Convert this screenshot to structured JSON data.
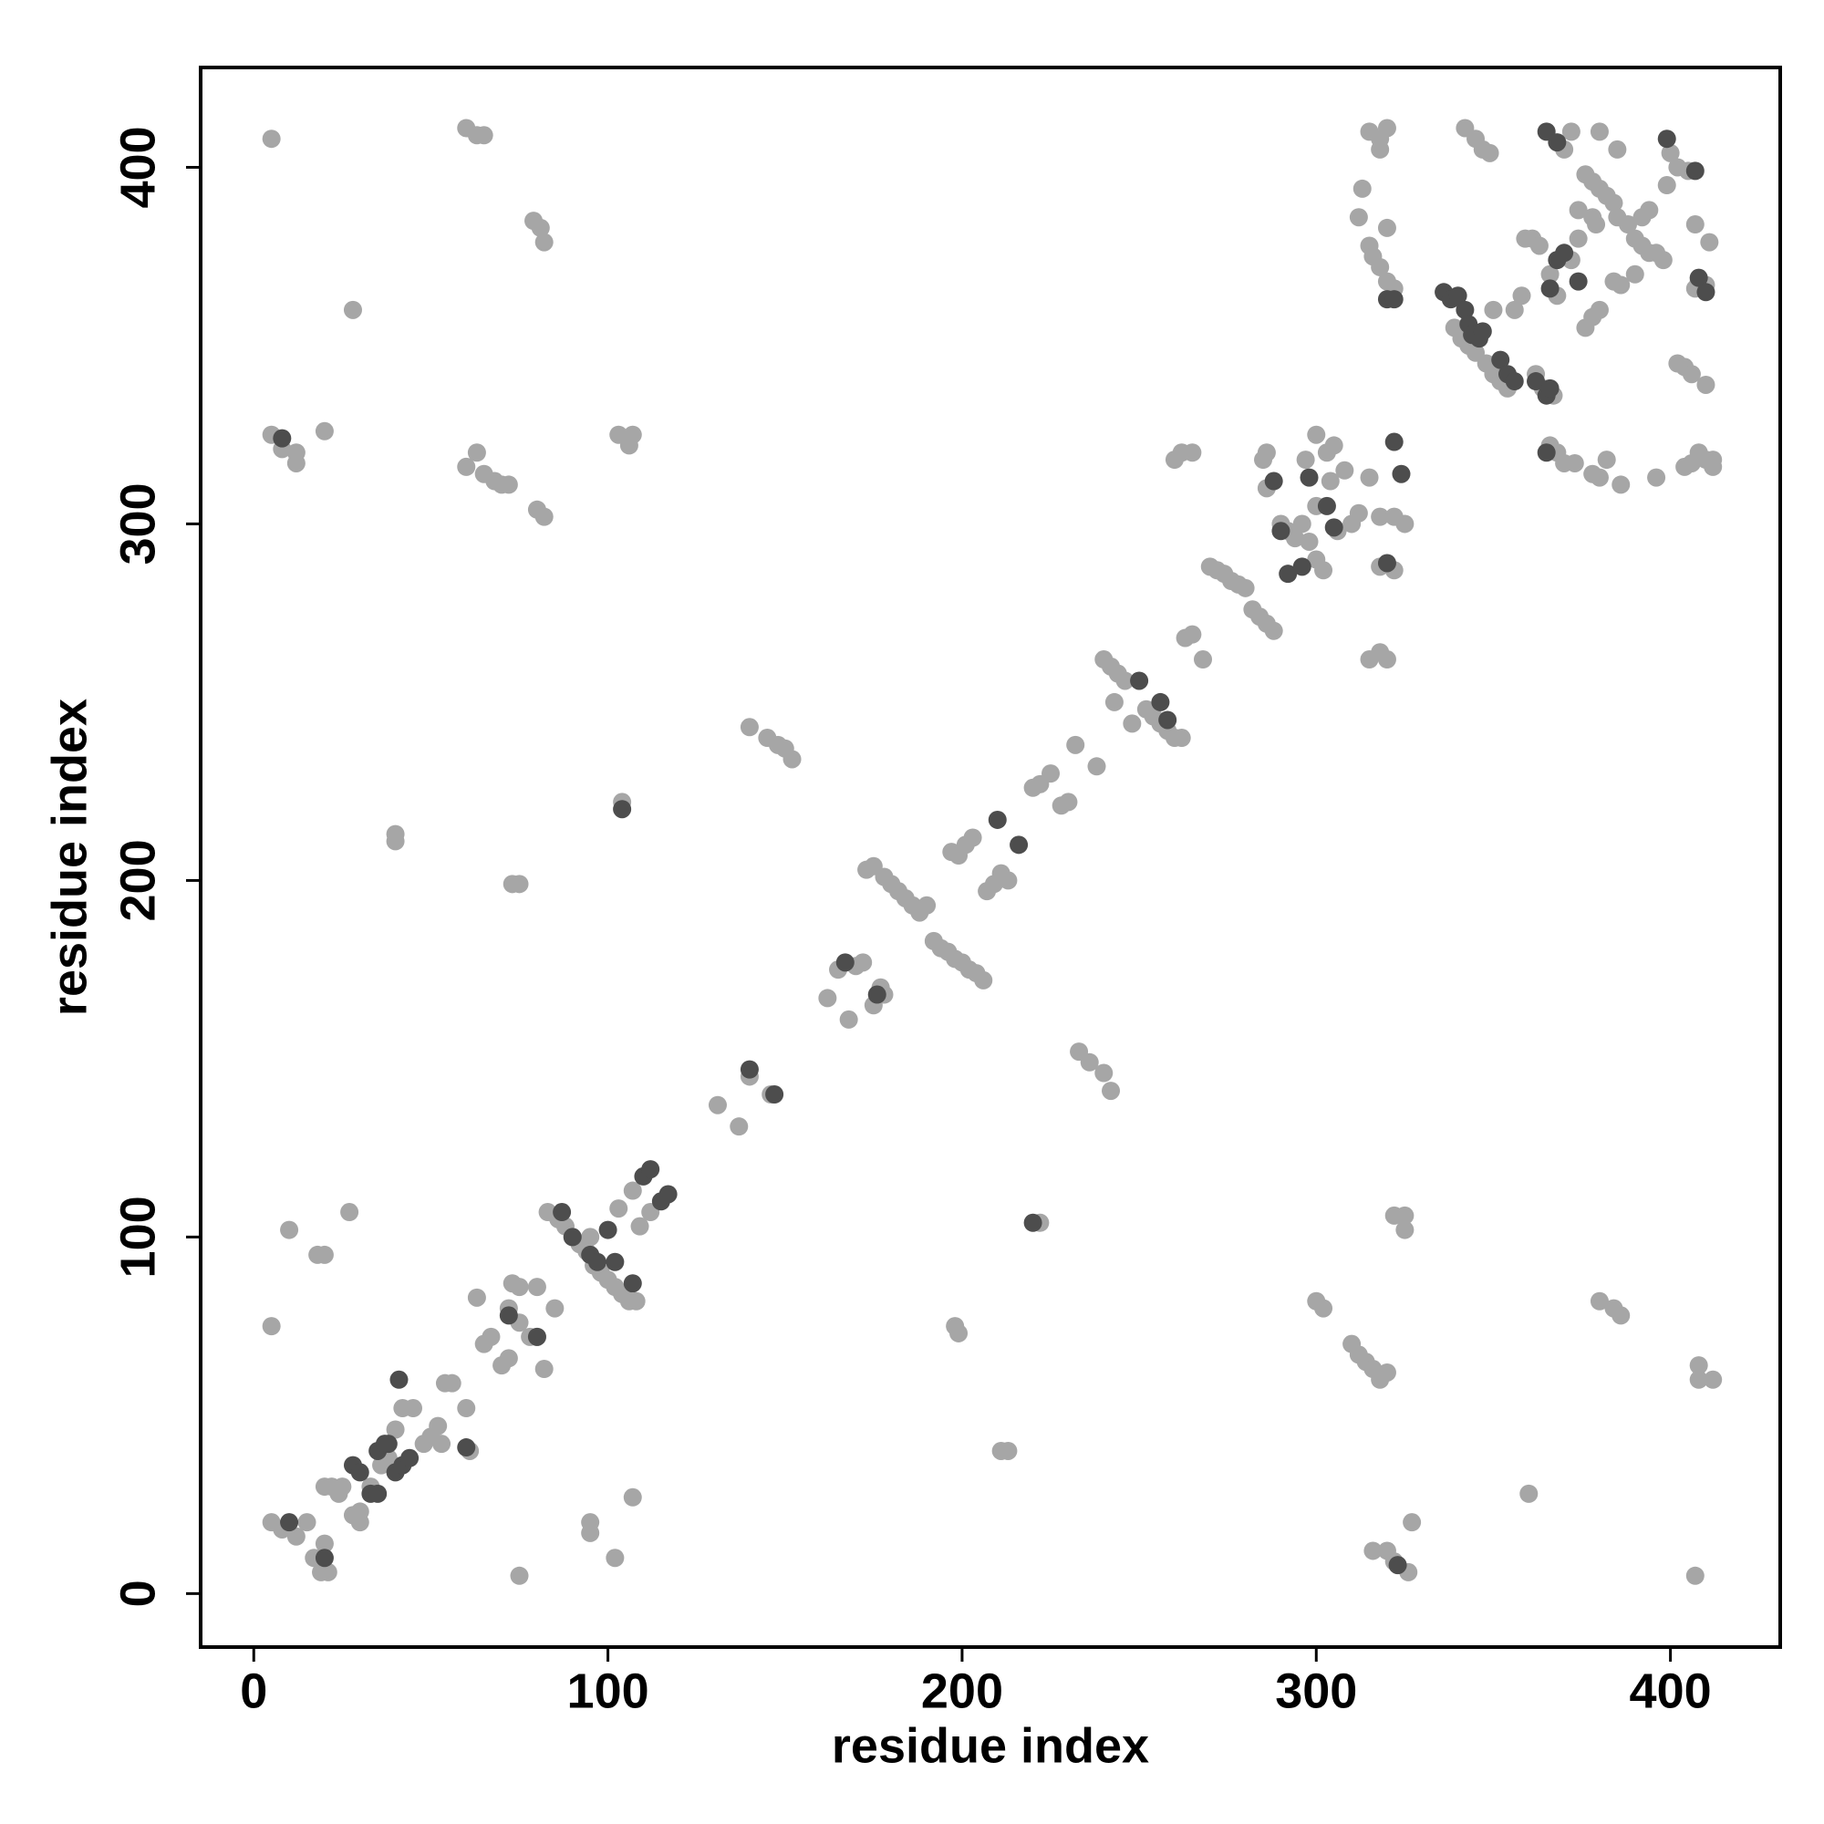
{
  "chart_data": {
    "type": "scatter",
    "xlabel": "residue index",
    "ylabel": "residue index",
    "xlim": [
      -15,
      431
    ],
    "ylim": [
      -15,
      428
    ],
    "xticks": [
      0,
      100,
      200,
      300,
      400
    ],
    "yticks": [
      0,
      100,
      200,
      300,
      400
    ],
    "grid": false,
    "series": [
      {
        "color": "#a6a6a6",
        "x": [
          5,
          60,
          63,
          65,
          28,
          79,
          81,
          82,
          5,
          8,
          12,
          12,
          20,
          60,
          63,
          65,
          68,
          70,
          72,
          80,
          82,
          103,
          107,
          106,
          40,
          40,
          73,
          75,
          104,
          140,
          145,
          148,
          150,
          152,
          233,
          236,
          240,
          242,
          5,
          10,
          18,
          20,
          27,
          198,
          199,
          211,
          213,
          222,
          300,
          302,
          310,
          312,
          314,
          316,
          318,
          320,
          322,
          325,
          325,
          320,
          316,
          322,
          326,
          327,
          360,
          380,
          384,
          386,
          407,
          408,
          408,
          412,
          95,
          95,
          102,
          107,
          75,
          5,
          8,
          12,
          15,
          17,
          19,
          21,
          20,
          20,
          22,
          25,
          24,
          28,
          30,
          30,
          33,
          36,
          38,
          40,
          42,
          45,
          48,
          50,
          52,
          53,
          54,
          56,
          60,
          61,
          63,
          65,
          67,
          70,
          72,
          72,
          73,
          75,
          75,
          78,
          80,
          82,
          80,
          85,
          83,
          86,
          88,
          90,
          92,
          94,
          95,
          96,
          98,
          100,
          102,
          104,
          106,
          108,
          103,
          107,
          109,
          112,
          131,
          137,
          140,
          146,
          162,
          165,
          168,
          170,
          172,
          175,
          177,
          178,
          173,
          175,
          178,
          180,
          182,
          184,
          186,
          188,
          190,
          192,
          194,
          196,
          198,
          200,
          202,
          204,
          206,
          197,
          199,
          201,
          203,
          207,
          209,
          211,
          213,
          220,
          222,
          225,
          228,
          230,
          232,
          238,
          240,
          242,
          244,
          246,
          243,
          248,
          252,
          254,
          256,
          258,
          260,
          262,
          263,
          265,
          268,
          270,
          272,
          274,
          276,
          278,
          280,
          282,
          284,
          286,
          288,
          290,
          292,
          294,
          296,
          298,
          300,
          302,
          297,
          300,
          303,
          305,
          308,
          310,
          312,
          315,
          318,
          322,
          325,
          322,
          318,
          318,
          320,
          315,
          285,
          286,
          286,
          260,
          262,
          265,
          300,
          304,
          306,
          315,
          318,
          320,
          318,
          313,
          312,
          315,
          316,
          318,
          320,
          322,
          320,
          342,
          345,
          347,
          349,
          350,
          339,
          341,
          343,
          345,
          348,
          350,
          352,
          354,
          356,
          358,
          359,
          361,
          363,
          362,
          364,
          367,
          366,
          368,
          372,
          374,
          374,
          376,
          378,
          380,
          382,
          384,
          385,
          388,
          390,
          392,
          394,
          396,
          398,
          399,
          402,
          400,
          405,
          380,
          385,
          378,
          379,
          370,
          372,
          376,
          378,
          380,
          384,
          386,
          390,
          392,
          394,
          402,
          404,
          406,
          410,
          411,
          407,
          408,
          410,
          407,
          366,
          368,
          370,
          373,
          378,
          380,
          382,
          386,
          396,
          404,
          406,
          408,
          410,
          412,
          412
        ],
        "y": [
          408,
          411,
          409,
          409,
          360,
          385,
          383,
          379,
          325,
          321,
          320,
          317,
          326,
          316,
          320,
          314,
          312,
          311,
          311,
          304,
          302,
          325,
          325,
          322,
          213,
          211,
          199,
          199,
          222,
          243,
          240,
          238,
          237,
          234,
          152,
          149,
          146,
          141,
          75,
          102,
          95,
          95,
          107,
          75,
          73,
          40,
          40,
          104,
          82,
          80,
          70,
          67,
          65,
          63,
          60,
          62,
          106,
          106,
          102,
          12,
          12,
          9,
          6,
          20,
          28,
          82,
          80,
          78,
          5,
          64,
          60,
          60,
          20,
          17,
          10,
          27,
          5,
          20,
          18,
          16,
          20,
          10,
          6,
          6,
          14,
          30,
          30,
          30,
          28,
          22,
          20,
          23,
          30,
          36,
          38,
          46,
          52,
          52,
          42,
          44,
          47,
          42,
          59,
          59,
          52,
          40,
          83,
          70,
          72,
          64,
          66,
          80,
          87,
          86,
          76,
          72,
          72,
          63,
          86,
          80,
          107,
          105,
          103,
          100,
          98,
          96,
          100,
          92,
          90,
          88,
          86,
          84,
          82,
          82,
          108,
          113,
          103,
          107,
          137,
          131,
          145,
          140,
          167,
          175,
          161,
          176,
          177,
          165,
          170,
          168,
          203,
          204,
          201,
          199,
          197,
          195,
          193,
          191,
          193,
          183,
          181,
          180,
          178,
          177,
          175,
          174,
          172,
          208,
          207,
          210,
          212,
          197,
          199,
          202,
          200,
          226,
          227,
          230,
          221,
          222,
          238,
          232,
          262,
          260,
          258,
          256,
          250,
          244,
          248,
          246,
          244,
          242,
          240,
          240,
          268,
          269,
          262,
          288,
          287,
          286,
          284,
          283,
          282,
          276,
          274,
          272,
          270,
          300,
          298,
          296,
          300,
          295,
          290,
          287,
          318,
          325,
          320,
          322,
          315,
          300,
          303,
          313,
          302,
          302,
          300,
          287,
          288,
          264,
          262,
          262,
          318,
          320,
          310,
          318,
          320,
          320,
          305,
          312,
          298,
          410,
          408,
          411,
          405,
          394,
          386,
          378,
          375,
          372,
          368,
          366,
          383,
          411,
          408,
          405,
          404,
          360,
          355,
          352,
          350,
          348,
          345,
          342,
          340,
          338,
          360,
          364,
          380,
          380,
          378,
          342,
          338,
          336,
          370,
          364,
          374,
          380,
          388,
          398,
          396,
          394,
          392,
          390,
          386,
          384,
          380,
          378,
          376,
          376,
          374,
          395,
          400,
          404,
          399,
          410,
          405,
          386,
          384,
          405,
          410,
          355,
          358,
          360,
          368,
          367,
          370,
          386,
          388,
          345,
          344,
          342,
          339,
          379,
          384,
          368,
          367,
          366,
          322,
          320,
          317,
          317,
          314,
          313,
          318,
          311,
          313,
          316,
          317,
          320,
          318,
          318,
          316
        ]
      },
      {
        "color": "#4d4d4d",
        "x": [
          10,
          20,
          28,
          30,
          33,
          35,
          35,
          37,
          38,
          40,
          42,
          44,
          41,
          60,
          72,
          80,
          87,
          90,
          95,
          97,
          100,
          102,
          107,
          110,
          112,
          115,
          117,
          140,
          147,
          167,
          176,
          210,
          216,
          220,
          104,
          250,
          256,
          258,
          288,
          290,
          292,
          296,
          298,
          303,
          305,
          320,
          322,
          324,
          320,
          336,
          338,
          340,
          342,
          343,
          346,
          344,
          347,
          352,
          354,
          356,
          362,
          365,
          366,
          368,
          370,
          374,
          366,
          365,
          368,
          399,
          407,
          408,
          410,
          365,
          322,
          8,
          323
        ],
        "y": [
          20,
          10,
          36,
          34,
          28,
          28,
          40,
          42,
          42,
          34,
          36,
          38,
          60,
          41,
          78,
          72,
          107,
          100,
          95,
          93,
          102,
          93,
          87,
          117,
          119,
          110,
          112,
          147,
          140,
          177,
          168,
          217,
          210,
          104,
          220,
          256,
          250,
          245,
          312,
          298,
          286,
          288,
          313,
          305,
          299,
          289,
          323,
          314,
          363,
          365,
          363,
          364,
          360,
          356,
          352,
          353,
          354,
          346,
          342,
          340,
          340,
          336,
          338,
          374,
          376,
          368,
          366,
          410,
          407,
          408,
          399,
          369,
          365,
          320,
          363,
          324,
          8
        ]
      }
    ]
  }
}
